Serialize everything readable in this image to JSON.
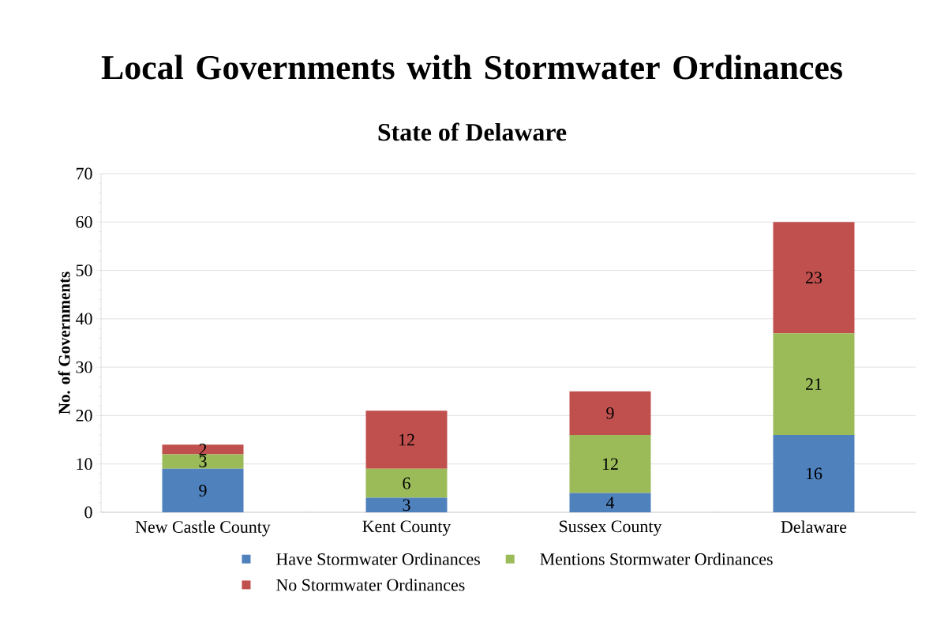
{
  "chart_data": {
    "type": "bar",
    "title": "Local Governments with Stormwater Ordinances",
    "subtitle": "State of Delaware",
    "ylabel": "No. of Governments",
    "categories": [
      "New Castle County",
      "Kent County",
      "Sussex County",
      "Delaware"
    ],
    "series": [
      {
        "name": "Have Stormwater Ordinances",
        "color": "#4f81bd",
        "values": [
          9,
          3,
          4,
          16
        ]
      },
      {
        "name": "Mentions Stormwater Ordinances",
        "color": "#9bbb59",
        "values": [
          3,
          6,
          12,
          21
        ]
      },
      {
        "name": "No Stormwater Ordinances",
        "color": "#c0504d",
        "values": [
          2,
          12,
          9,
          23
        ]
      }
    ],
    "stacked": true,
    "ylim": [
      0,
      70
    ],
    "yticks": [
      0,
      10,
      20,
      30,
      40,
      50,
      60,
      70
    ],
    "grid": "y",
    "legend": "bottom",
    "data_labels": true
  }
}
